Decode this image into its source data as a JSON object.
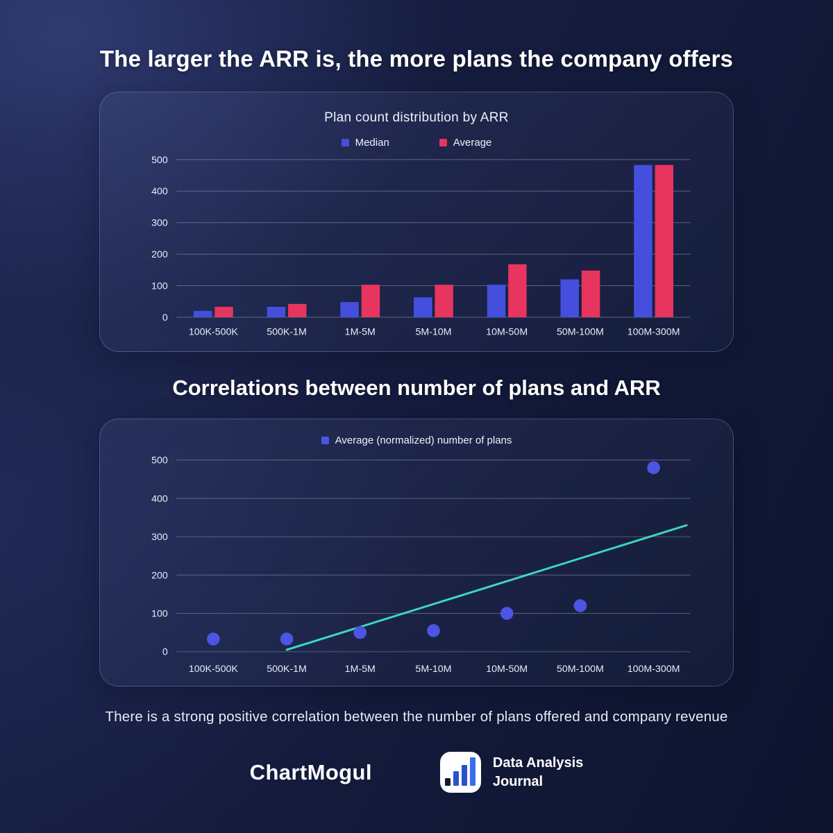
{
  "page": {
    "title": "The larger the ARR is, the more plans the company offers",
    "section2_title": "Correlations between number of plans and ARR",
    "footnote": "There is a strong positive correlation between the number of plans offered and company revenue"
  },
  "chart_data": [
    {
      "type": "bar",
      "title": "Plan count distribution by ARR",
      "categories": [
        "100K-500K",
        "500K-1M",
        "1M-5M",
        "5M-10M",
        "10M-50M",
        "50M-100M",
        "100M-300M"
      ],
      "series": [
        {
          "name": "Median",
          "color": "#4450dd",
          "values": [
            20,
            33,
            48,
            63,
            103,
            120,
            483
          ]
        },
        {
          "name": "Average",
          "color": "#e7355f",
          "values": [
            33,
            42,
            103,
            103,
            168,
            148,
            483
          ]
        }
      ],
      "ylim": [
        0,
        500
      ],
      "ytick_step": 100,
      "grid": true,
      "legend_position": "top",
      "gridline_color": "#aab3d0"
    },
    {
      "type": "scatter",
      "legend_label": "Average (normalized) number of plans",
      "categories": [
        "100K-500K",
        "500K-1M",
        "1M-5M",
        "5M-10M",
        "10M-50M",
        "50M-100M",
        "100M-300M"
      ],
      "values": [
        33,
        33,
        50,
        55,
        100,
        120,
        480
      ],
      "point_color": "#4c55e3",
      "trendline": {
        "color": "#3ed8c3",
        "start_category_index": 1,
        "start_value": 5,
        "end_category_index": 6.45,
        "end_value": 330
      },
      "ylim": [
        0,
        500
      ],
      "ytick_step": 100,
      "grid": true,
      "legend_position": "top",
      "gridline_color": "#aab3d0"
    }
  ],
  "footer": {
    "chartmogul_logo_text": "ChartMogul",
    "daj_name_line1": "Data Analysis",
    "daj_name_line2": "Journal",
    "daj_icon": {
      "bar_colors": [
        "#12182e",
        "#2a52c8",
        "#2a52c8",
        "#3a6cf0"
      ]
    }
  }
}
